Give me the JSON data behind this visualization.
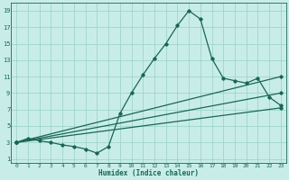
{
  "xlabel": "Humidex (Indice chaleur)",
  "bg_color": "#c8ede8",
  "grid_color": "#a0d4cc",
  "line_color": "#1a6655",
  "line_width": 0.9,
  "marker": "D",
  "marker_size": 1.8,
  "xlim": [
    -0.5,
    23.5
  ],
  "ylim": [
    0.5,
    20.0
  ],
  "xticks": [
    0,
    1,
    2,
    3,
    4,
    5,
    6,
    7,
    8,
    9,
    10,
    11,
    12,
    13,
    14,
    15,
    16,
    17,
    18,
    19,
    20,
    21,
    22,
    23
  ],
  "yticks": [
    1,
    3,
    5,
    7,
    9,
    11,
    13,
    15,
    17,
    19
  ],
  "curve_main_x": [
    0,
    1,
    2,
    3,
    4,
    5,
    6,
    7,
    8,
    9,
    10,
    11,
    12,
    13,
    14,
    15,
    16,
    17,
    18,
    19,
    20,
    21,
    22,
    23
  ],
  "curve_main_y": [
    3.0,
    3.5,
    3.2,
    3.0,
    2.7,
    2.5,
    2.2,
    1.7,
    2.5,
    6.5,
    9.0,
    11.2,
    13.2,
    15.0,
    17.2,
    19.0,
    18.0,
    13.2,
    10.8,
    10.5,
    10.2,
    10.8,
    8.5,
    7.5
  ],
  "line1_x": [
    0,
    23
  ],
  "line1_y": [
    3.0,
    11.0
  ],
  "line2_x": [
    0,
    23
  ],
  "line2_y": [
    3.0,
    9.0
  ],
  "line3_x": [
    0,
    23
  ],
  "line3_y": [
    3.0,
    7.2
  ]
}
